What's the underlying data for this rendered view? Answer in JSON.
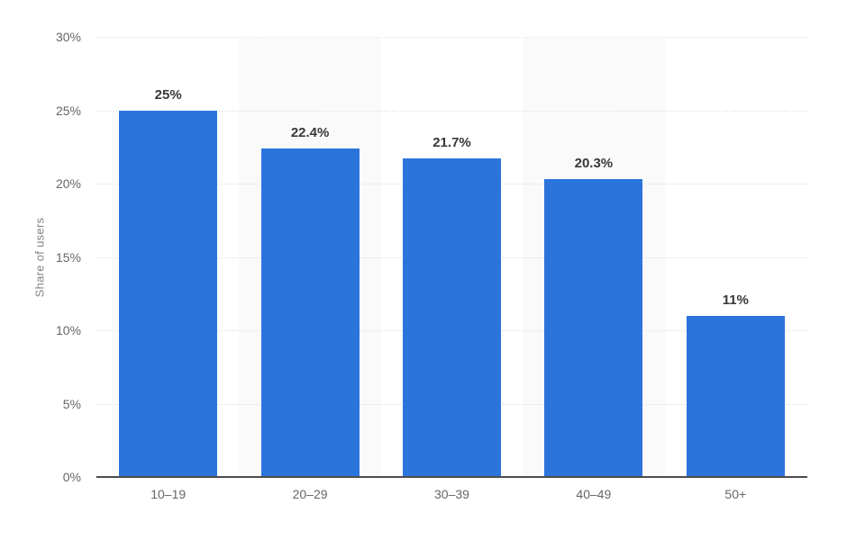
{
  "chart_data": {
    "type": "bar",
    "title": "",
    "ylabel": "Share of users",
    "xlabel": "",
    "categories": [
      "10–19",
      "20–29",
      "30–39",
      "40–49",
      "50+"
    ],
    "values": [
      25,
      22.4,
      21.7,
      20.3,
      11
    ],
    "value_labels": [
      "25%",
      "22.4%",
      "21.7%",
      "20.3%",
      "11%"
    ],
    "ylim": [
      0,
      30
    ],
    "yticks": [
      0,
      5,
      10,
      15,
      20,
      25,
      30
    ],
    "ytick_labels": [
      "0%",
      "5%",
      "10%",
      "15%",
      "20%",
      "25%",
      "30%"
    ],
    "grid": "horizontal-dotted",
    "legend": "none",
    "striped_bands": [
      1,
      3
    ],
    "colors": {
      "bar": "#2b74dc",
      "band_stripe": "#fafafa",
      "gridline": "#d4d4d4",
      "axis_line": "#4d4d4d",
      "tick_text": "#666666",
      "value_text": "#383838",
      "axis_title_text": "#848484"
    }
  }
}
